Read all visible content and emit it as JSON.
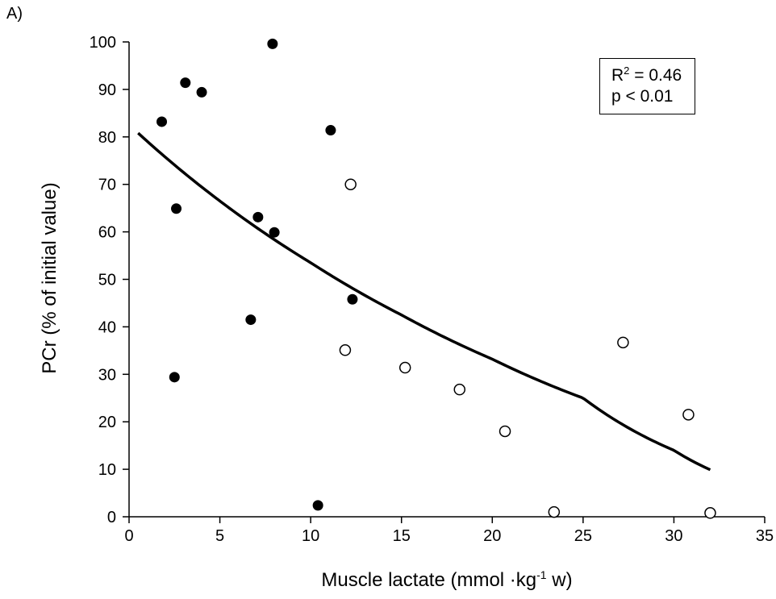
{
  "panel_label": "A)",
  "chart_data": {
    "type": "scatter",
    "xlabel_parts": [
      "Muscle lactate (mmol ·kg",
      "-1",
      " w)"
    ],
    "ylabel": "PCr (% of initial value)",
    "xlim": [
      0,
      35
    ],
    "ylim": [
      0,
      100
    ],
    "x_ticks": [
      0,
      5,
      10,
      15,
      20,
      25,
      30,
      35
    ],
    "y_ticks": [
      0,
      10,
      20,
      30,
      40,
      50,
      60,
      70,
      80,
      90,
      100
    ],
    "grid": false,
    "annotation": {
      "r2_prefix": "R",
      "r2_exp": "2",
      "r2_value": " = 0.46",
      "p_text": "p < 0.01"
    },
    "series": [
      {
        "marker": "filled",
        "color": "#000000",
        "points": [
          {
            "x": 1.8,
            "y": 83.2
          },
          {
            "x": 3.1,
            "y": 91.4
          },
          {
            "x": 4.0,
            "y": 89.4
          },
          {
            "x": 7.9,
            "y": 99.6
          },
          {
            "x": 11.1,
            "y": 81.4
          },
          {
            "x": 2.6,
            "y": 64.9
          },
          {
            "x": 7.1,
            "y": 63.1
          },
          {
            "x": 8.0,
            "y": 59.9
          },
          {
            "x": 12.3,
            "y": 45.8
          },
          {
            "x": 6.7,
            "y": 41.5
          },
          {
            "x": 2.5,
            "y": 29.4
          },
          {
            "x": 10.4,
            "y": 2.4
          }
        ]
      },
      {
        "marker": "open",
        "color": "#000000",
        "points": [
          {
            "x": 12.2,
            "y": 70.0
          },
          {
            "x": 11.9,
            "y": 35.1
          },
          {
            "x": 15.2,
            "y": 31.4
          },
          {
            "x": 18.2,
            "y": 26.8
          },
          {
            "x": 20.7,
            "y": 18.0
          },
          {
            "x": 27.2,
            "y": 36.7
          },
          {
            "x": 30.8,
            "y": 21.5
          },
          {
            "x": 23.4,
            "y": 1.0
          },
          {
            "x": 32.0,
            "y": 0.8
          }
        ]
      }
    ],
    "fit_curve": {
      "type": "exponential",
      "x": [
        0.5,
        5,
        10,
        15,
        20,
        25,
        30,
        32
      ],
      "y": [
        80.8,
        66.5,
        53.5,
        42.5,
        33.2,
        25.0,
        14.0,
        9.9
      ]
    }
  }
}
